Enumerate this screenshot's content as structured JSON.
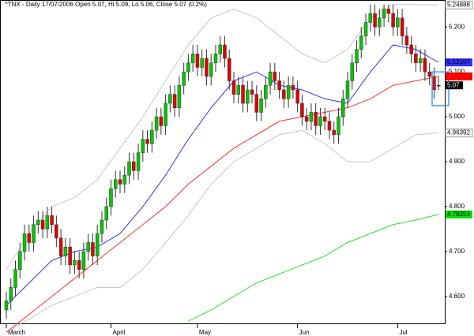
{
  "chart_data": {
    "type": "candlestick",
    "title": "^TNX - Daily 17/07/2006 Open 5.07, Hi 5.09, Lo 5.06, Close 5.07 (0.2%)",
    "categories": [
      "March",
      null,
      null,
      null,
      null,
      null,
      null,
      null,
      null,
      null,
      null,
      null,
      null,
      null,
      null,
      null,
      null,
      null,
      null,
      null,
      null,
      null,
      null,
      "April",
      null,
      null,
      null,
      null,
      null,
      null,
      null,
      null,
      null,
      null,
      null,
      null,
      null,
      null,
      null,
      null,
      null,
      null,
      "May",
      null,
      null,
      null,
      null,
      null,
      null,
      null,
      null,
      null,
      null,
      null,
      null,
      null,
      null,
      null,
      null,
      null,
      null,
      null,
      null,
      null,
      "Jun",
      null,
      null,
      null,
      null,
      null,
      null,
      null,
      null,
      null,
      null,
      null,
      null,
      null,
      null,
      null,
      null,
      null,
      null,
      null,
      null,
      null,
      "Jul",
      null,
      null,
      null,
      null,
      null,
      null,
      null,
      null,
      null
    ],
    "open": [
      4.57,
      4.59,
      4.62,
      4.66,
      4.7,
      4.74,
      4.72,
      4.76,
      4.77,
      4.75,
      4.78,
      4.76,
      4.73,
      4.69,
      4.71,
      4.67,
      4.68,
      4.66,
      4.7,
      4.72,
      4.69,
      4.74,
      4.77,
      4.8,
      4.84,
      4.86,
      4.85,
      4.87,
      4.9,
      4.88,
      4.92,
      4.95,
      4.94,
      4.97,
      5.0,
      4.98,
      5.03,
      5.05,
      5.02,
      5.07,
      5.1,
      5.12,
      5.14,
      5.11,
      5.13,
      5.09,
      5.12,
      5.14,
      5.16,
      5.13,
      5.08,
      5.05,
      5.07,
      5.03,
      5.06,
      5.05,
      5.01,
      5.04,
      5.07,
      5.1,
      5.08,
      5.06,
      5.04,
      5.07,
      5.06,
      5.03,
      5.0,
      4.99,
      5.01,
      4.98,
      5.0,
      4.99,
      4.97,
      4.96,
      5.0,
      5.04,
      5.08,
      5.12,
      5.15,
      5.18,
      5.21,
      5.23,
      5.2,
      5.22,
      5.24,
      5.23,
      5.2,
      5.22,
      5.18,
      5.16,
      5.14,
      5.12,
      5.13,
      5.1,
      5.09,
      5.07
    ],
    "high": [
      4.61,
      4.64,
      4.68,
      4.72,
      4.76,
      4.76,
      4.78,
      4.79,
      4.79,
      4.8,
      4.8,
      4.78,
      4.75,
      4.73,
      4.73,
      4.7,
      4.7,
      4.72,
      4.74,
      4.74,
      4.76,
      4.79,
      4.82,
      4.86,
      4.88,
      4.88,
      4.89,
      4.92,
      4.92,
      4.94,
      4.97,
      4.97,
      4.99,
      5.02,
      5.02,
      5.05,
      5.07,
      5.07,
      5.09,
      5.12,
      5.14,
      5.16,
      5.16,
      5.15,
      5.15,
      5.14,
      5.16,
      5.18,
      5.18,
      5.15,
      5.1,
      5.09,
      5.09,
      5.08,
      5.08,
      5.07,
      5.06,
      5.09,
      5.12,
      5.12,
      5.1,
      5.08,
      5.09,
      5.09,
      5.08,
      5.05,
      5.02,
      5.03,
      5.03,
      5.02,
      5.02,
      5.01,
      4.99,
      5.02,
      5.06,
      5.1,
      5.14,
      5.17,
      5.2,
      5.23,
      5.25,
      5.25,
      5.24,
      5.25,
      5.25,
      5.25,
      5.24,
      5.24,
      5.2,
      5.18,
      5.16,
      5.15,
      5.15,
      5.12,
      5.11,
      5.09
    ],
    "low": [
      4.55,
      4.57,
      4.6,
      4.64,
      4.68,
      4.7,
      4.7,
      4.74,
      4.73,
      4.73,
      4.74,
      4.71,
      4.67,
      4.67,
      4.65,
      4.65,
      4.64,
      4.64,
      4.68,
      4.67,
      4.67,
      4.72,
      4.75,
      4.78,
      4.82,
      4.83,
      4.83,
      4.85,
      4.86,
      4.86,
      4.9,
      4.92,
      4.92,
      4.95,
      4.96,
      4.96,
      5.01,
      5.0,
      5.0,
      5.05,
      5.08,
      5.1,
      5.09,
      5.09,
      5.07,
      5.07,
      5.1,
      5.12,
      5.11,
      5.06,
      5.03,
      5.03,
      5.01,
      5.01,
      5.03,
      4.99,
      4.99,
      5.02,
      5.05,
      5.06,
      5.04,
      5.02,
      5.02,
      5.04,
      5.01,
      4.98,
      4.97,
      4.97,
      4.96,
      4.96,
      4.97,
      4.95,
      4.94,
      4.94,
      4.98,
      5.02,
      5.06,
      5.1,
      5.13,
      5.16,
      5.19,
      5.18,
      5.18,
      5.2,
      5.21,
      5.18,
      5.18,
      5.16,
      5.14,
      5.12,
      5.1,
      5.1,
      5.08,
      5.07,
      5.04,
      5.06
    ],
    "close": [
      4.59,
      4.62,
      4.66,
      4.7,
      4.74,
      4.72,
      4.76,
      4.77,
      4.75,
      4.78,
      4.76,
      4.73,
      4.69,
      4.71,
      4.67,
      4.68,
      4.66,
      4.7,
      4.72,
      4.69,
      4.74,
      4.77,
      4.8,
      4.84,
      4.86,
      4.85,
      4.87,
      4.9,
      4.88,
      4.92,
      4.95,
      4.94,
      4.97,
      5.0,
      4.98,
      5.03,
      5.05,
      5.02,
      5.07,
      5.1,
      5.12,
      5.14,
      5.11,
      5.13,
      5.09,
      5.12,
      5.14,
      5.16,
      5.13,
      5.08,
      5.05,
      5.07,
      5.03,
      5.06,
      5.05,
      5.01,
      5.04,
      5.07,
      5.1,
      5.08,
      5.06,
      5.04,
      5.07,
      5.06,
      5.03,
      5.0,
      4.99,
      5.01,
      4.98,
      5.0,
      4.99,
      4.97,
      4.96,
      5.0,
      5.04,
      5.08,
      5.12,
      5.15,
      5.18,
      5.21,
      5.23,
      5.2,
      5.22,
      5.24,
      5.23,
      5.2,
      5.22,
      5.18,
      5.16,
      5.14,
      5.12,
      5.13,
      5.1,
      5.09,
      5.06,
      5.07
    ],
    "close_label": "5.07",
    "up_color": "#00c800",
    "down_color": "#e00000",
    "line_x": [
      0,
      5,
      10,
      15,
      20,
      25,
      30,
      35,
      40,
      45,
      50,
      55,
      60,
      65,
      70,
      75,
      80,
      85,
      90,
      95
    ],
    "lines": [
      {
        "color": "#c8c8c8",
        "values": [
          4.66,
          4.74,
          4.8,
          4.82,
          4.86,
          4.93,
          5.0,
          5.08,
          5.16,
          5.22,
          5.24,
          5.22,
          5.18,
          5.14,
          5.12,
          5.15,
          5.22,
          5.25,
          5.25,
          5.24888
        ],
        "last_label": "5.24888"
      },
      {
        "color": "#c8c8c8",
        "values": [
          4.52,
          4.55,
          4.58,
          4.6,
          4.62,
          4.62,
          4.66,
          4.72,
          4.78,
          4.85,
          4.9,
          4.93,
          4.96,
          4.97,
          4.94,
          4.9,
          4.9,
          4.93,
          4.96,
          4.96392
        ],
        "last_label": "4.96392"
      },
      {
        "color": "#3030ff",
        "values": [
          4.58,
          4.63,
          4.68,
          4.7,
          4.71,
          4.74,
          4.8,
          4.87,
          4.95,
          5.02,
          5.08,
          5.1,
          5.07,
          5.06,
          5.04,
          5.03,
          5.1,
          5.16,
          5.15,
          5.12107
        ],
        "last_label": "5.12107",
        "label_color": "#3030ff"
      },
      {
        "color": "#ff3030",
        "values": [
          4.52,
          4.56,
          4.6,
          4.64,
          4.68,
          4.72,
          4.76,
          4.8,
          4.85,
          4.89,
          4.93,
          4.96,
          4.99,
          5.0,
          5.01,
          5.02,
          5.04,
          5.07,
          5.08,
          5.09
        ],
        "label_color": "#ff0000"
      },
      {
        "color": "#30e030",
        "values": [
          null,
          null,
          null,
          null,
          null,
          null,
          null,
          null,
          4.545,
          4.57,
          4.6,
          4.63,
          4.65,
          4.67,
          4.69,
          4.72,
          4.74,
          4.76,
          4.77,
          4.78253
        ],
        "last_label": "4.78253",
        "label_color": "#00e000"
      }
    ],
    "ylim": [
      4.54,
      5.253
    ],
    "yticks": [
      {
        "value": 4.6,
        "label": "4.600"
      },
      {
        "value": 4.7,
        "label": "4.700"
      },
      {
        "value": 4.8,
        "label": "4.800"
      },
      {
        "value": 4.9,
        "label": "4.900"
      },
      {
        "value": 5.0,
        "label": "5.000"
      },
      {
        "value": 5.1,
        "label": "5.100"
      },
      {
        "value": 5.2,
        "label": "5.200"
      }
    ],
    "grid": false
  }
}
